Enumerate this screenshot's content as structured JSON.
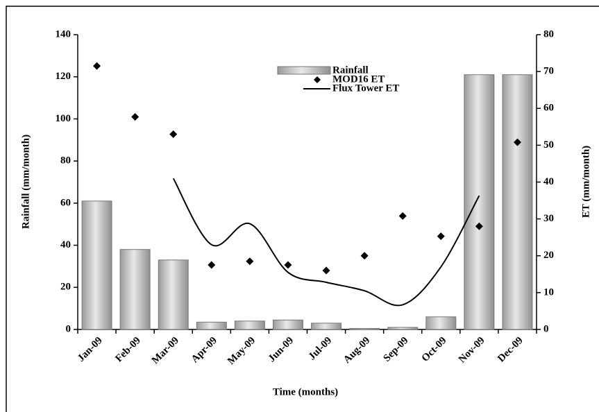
{
  "chart_data": {
    "type": "combo",
    "xlabel": "Time (months)",
    "ylabel": "Rainfall (mm/month)",
    "y2label": "ET (mm/month)",
    "categories": [
      "Jan-09",
      "Feb-09",
      "Mar-09",
      "Apr-09",
      "May-09",
      "Jun-09",
      "Jul-09",
      "Aug-09",
      "Sep-09",
      "Oct-09",
      "Nov-09",
      "Dec-09"
    ],
    "ylim": [
      0,
      140
    ],
    "yticks": [
      0,
      20,
      40,
      60,
      80,
      100,
      120,
      140
    ],
    "y2lim": [
      0,
      80
    ],
    "y2ticks": [
      0,
      10,
      20,
      30,
      40,
      50,
      60,
      70,
      80
    ],
    "series": [
      {
        "name": "Rainfall",
        "type": "bar",
        "color": "#b3b3b3",
        "values": [
          61,
          38,
          33,
          3.5,
          4,
          4.5,
          3,
          0.5,
          1,
          6,
          121,
          121
        ]
      },
      {
        "name": "MOD16 ET",
        "type": "scatter",
        "axis": "y2",
        "color": "#000000",
        "values": [
          71.5,
          57.7,
          53,
          17.5,
          18.5,
          17.5,
          16,
          20,
          30.8,
          25.3,
          28,
          50.8
        ]
      },
      {
        "name": "Flux Tower ET",
        "type": "line",
        "axis": "y2",
        "color": "#000000",
        "values": [
          null,
          null,
          41,
          23,
          28.7,
          15.5,
          12.8,
          10.5,
          6.7,
          17,
          36.3,
          null
        ]
      }
    ]
  }
}
